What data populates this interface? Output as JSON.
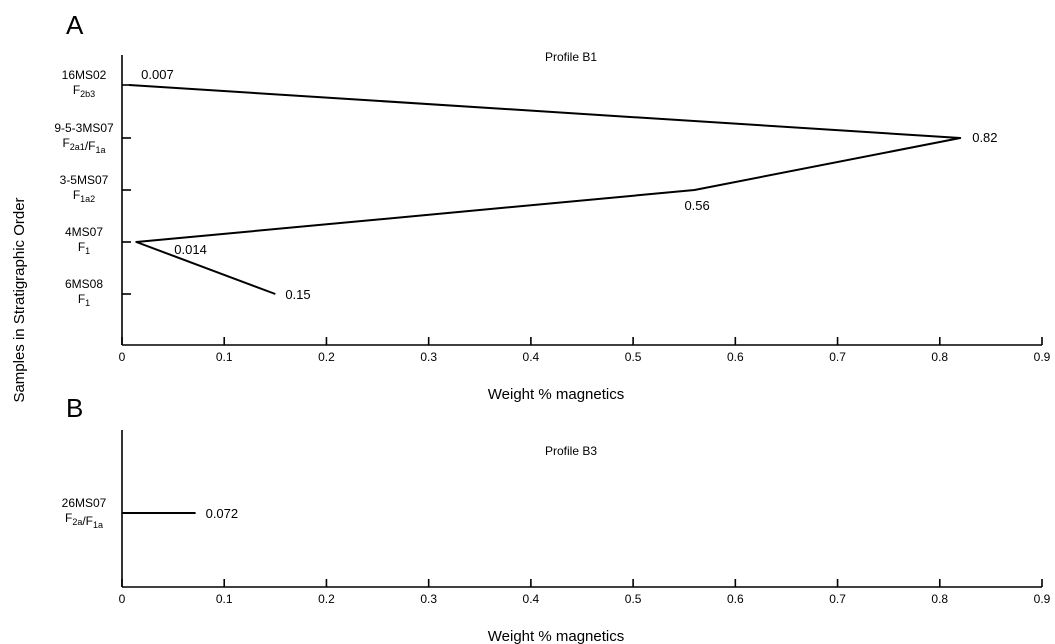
{
  "y_axis_label": "Samples in Stratigraphic Order",
  "chart_data": [
    {
      "type": "line",
      "panel": "A",
      "title": "Profile B1",
      "xlabel": "Weight  % magnetics",
      "ylabel": "Samples in Stratigraphic Order",
      "xlim": [
        0,
        0.9
      ],
      "xticks": [
        "0",
        "0.1",
        "0.2",
        "0.3",
        "0.4",
        "0.5",
        "0.6",
        "0.7",
        "0.8",
        "0.9"
      ],
      "grid": false,
      "categories": [
        {
          "sample": "16MS02",
          "facies": [
            [
              "F",
              "2b3"
            ]
          ]
        },
        {
          "sample": "9-5-3MS07",
          "facies": [
            [
              "F",
              "2a1"
            ],
            [
              "/",
              ""
            ],
            [
              "F",
              "1a"
            ]
          ]
        },
        {
          "sample": "3-5MS07",
          "facies": [
            [
              "F",
              "1a2"
            ]
          ]
        },
        {
          "sample": "4MS07",
          "facies": [
            [
              "F",
              "1"
            ]
          ]
        },
        {
          "sample": "6MS08",
          "facies": [
            [
              "F",
              "1"
            ]
          ]
        }
      ],
      "values": [
        0.007,
        0.82,
        0.56,
        0.014,
        0.15
      ],
      "data_labels": [
        "0.007",
        "0.82",
        "0.56",
        "0.014",
        "0.15"
      ]
    },
    {
      "type": "bar",
      "panel": "B",
      "title": "Profile B3",
      "xlabel": "Weight  % magnetics",
      "ylabel": "",
      "xlim": [
        0,
        0.9
      ],
      "xticks": [
        "0",
        "0.1",
        "0.2",
        "0.3",
        "0.4",
        "0.5",
        "0.6",
        "0.7",
        "0.8",
        "0.9"
      ],
      "grid": false,
      "categories": [
        {
          "sample": "26MS07",
          "facies": [
            [
              "F",
              "2a"
            ],
            [
              "/",
              ""
            ],
            [
              "F",
              "1a"
            ]
          ]
        }
      ],
      "values": [
        0.072
      ],
      "data_labels": [
        "0.072"
      ]
    }
  ]
}
